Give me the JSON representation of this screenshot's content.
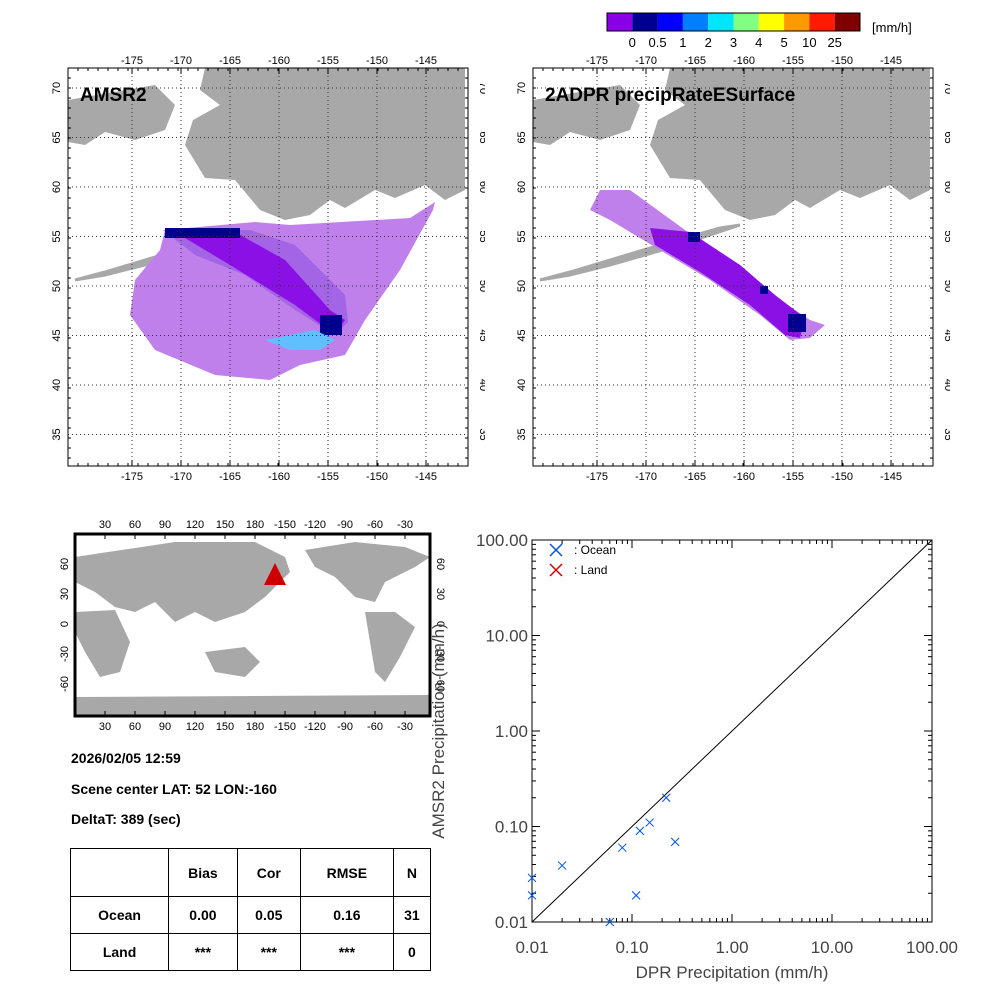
{
  "colorbar": {
    "unit": "[mm/h]",
    "colors": [
      "#8a00e6",
      "#000090",
      "#0000ff",
      "#0080ff",
      "#00e6ff",
      "#80ff80",
      "#ffff00",
      "#ff9900",
      "#ff1a00",
      "#800000"
    ],
    "tick_labels": [
      "0",
      "0.5",
      "1",
      "2",
      "3",
      "4",
      "5",
      "10",
      "25"
    ]
  },
  "maps": {
    "lon_ticks": [
      "-175",
      "-170",
      "-165",
      "-160",
      "-155",
      "-150",
      "-145"
    ],
    "lat_ticks": [
      "70",
      "65",
      "60",
      "55",
      "50",
      "45",
      "40",
      "35"
    ],
    "left_title": "AMSR2",
    "right_title": "2ADPR precipRateESurface"
  },
  "globe": {
    "lon_ticks": [
      "30",
      "60",
      "90",
      "120",
      "150",
      "180",
      "-150",
      "-120",
      "-90",
      "-60",
      "-30"
    ],
    "lat_ticks": [
      "60",
      "30",
      "0",
      "-30",
      "-60"
    ],
    "marker_color": "#cc0000"
  },
  "info": {
    "datetime": "2026/02/05 12:59",
    "scene_center": "Scene center LAT: 52   LON:-160",
    "delta_t": "DeltaT:  389 (sec)"
  },
  "stats_table": {
    "headers": [
      "",
      "Bias",
      "Cor",
      "RMSE",
      "N"
    ],
    "rows": [
      {
        "label": "Ocean",
        "bias": "0.00",
        "cor": "0.05",
        "rmse": "0.16",
        "n": "31"
      },
      {
        "label": "Land",
        "bias": "***",
        "cor": "***",
        "rmse": "***",
        "n": "0"
      }
    ]
  },
  "chart_data": {
    "type": "scatter",
    "title": "",
    "xlabel": "DPR Precipitation (mm/h)",
    "ylabel": "AMSR2 Precipitation (mm/h)",
    "xscale": "log",
    "yscale": "log",
    "xlim": [
      0.01,
      100
    ],
    "ylim": [
      0.01,
      100
    ],
    "x_tick_labels": [
      "0.01",
      "0.10",
      "1.00",
      "10.00",
      "100.00"
    ],
    "y_tick_labels": [
      "0.01",
      "0.10",
      "1.00",
      "10.00",
      "100.00"
    ],
    "legend": "top-left",
    "reference_line": "1:1",
    "series": [
      {
        "name": ": Ocean",
        "color": "#0055dd",
        "marker": "x",
        "points": [
          [
            0.01,
            0.029
          ],
          [
            0.01,
            0.019
          ],
          [
            0.02,
            0.039
          ],
          [
            0.06,
            0.01
          ],
          [
            0.08,
            0.06
          ],
          [
            0.11,
            0.019
          ],
          [
            0.12,
            0.09
          ],
          [
            0.15,
            0.11
          ],
          [
            0.22,
            0.2
          ],
          [
            0.27,
            0.069
          ]
        ]
      },
      {
        "name": ": Land",
        "color": "#cc0000",
        "marker": "x",
        "points": []
      }
    ]
  }
}
